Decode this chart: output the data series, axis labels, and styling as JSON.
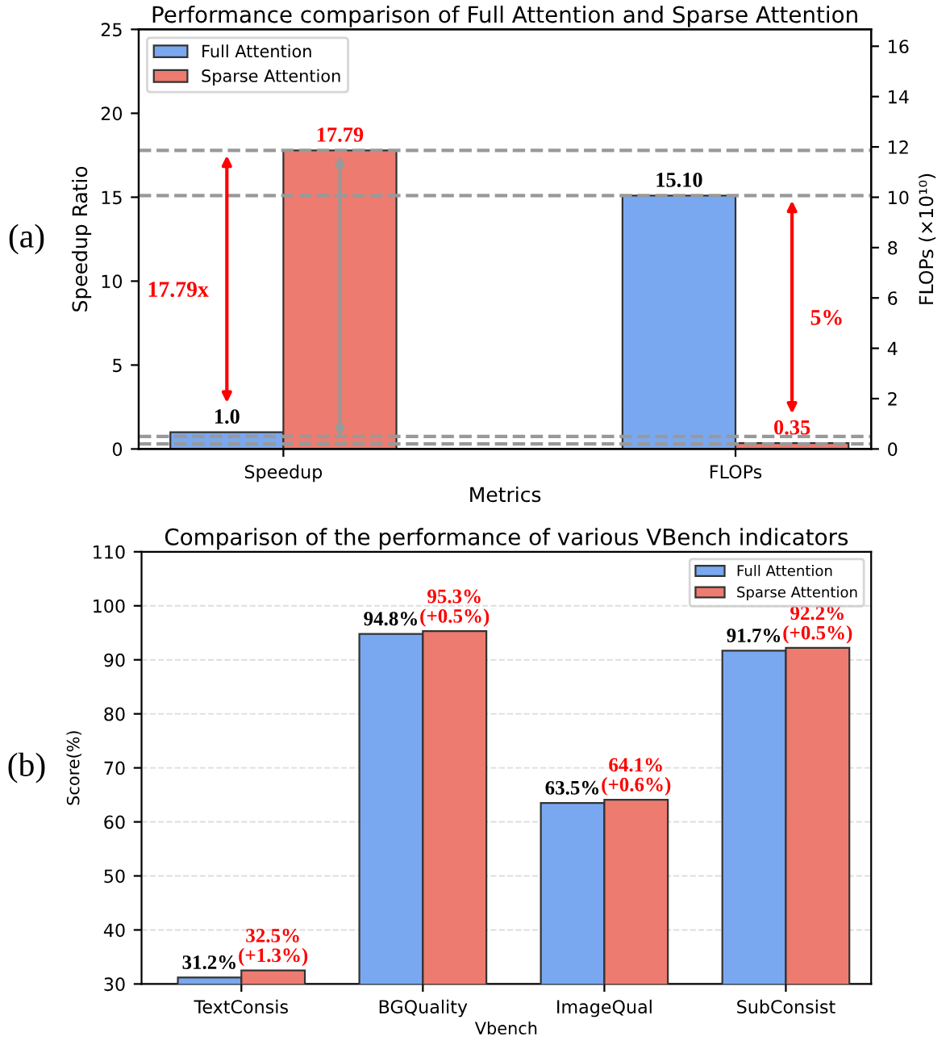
{
  "chart_data": [
    {
      "type": "bar",
      "title": "Performance comparison of Full Attention and Sparse Attention",
      "xlabel": "Metrics",
      "ylabel": "Speedup Ratio",
      "y2label": "FLOPs (×10¹⁰)",
      "categories": [
        "Speedup",
        "FLOPs"
      ],
      "series": [
        {
          "name": "Full Attention",
          "color": "#7aa8f0",
          "values": [
            1.0,
            15.1
          ],
          "value_labels": [
            "1.0",
            "15.10"
          ]
        },
        {
          "name": "Sparse Attention",
          "color": "#ee7b6f",
          "values": [
            17.79,
            0.35
          ],
          "value_labels": [
            "17.79",
            "0.35"
          ]
        }
      ],
      "ylim": [
        0,
        25
      ],
      "yticks": [
        0,
        5,
        10,
        15,
        20,
        25
      ],
      "y2lim": [
        0,
        16.67
      ],
      "y2ticks": [
        0,
        2,
        4,
        6,
        8,
        10,
        12,
        14,
        16
      ],
      "ref_lines": [
        {
          "axis": "y",
          "value": 17.79,
          "color": "#999999",
          "line_style": "dashed"
        },
        {
          "axis": "y",
          "value": 0.75,
          "color": "#999999",
          "line_style": "dashed"
        },
        {
          "axis": "y",
          "value": 15.1,
          "color": "#999999",
          "line_style": "dashed"
        },
        {
          "axis": "y",
          "value": 0.3,
          "color": "#999999",
          "line_style": "dashed"
        }
      ],
      "annotations": [
        "(a)",
        "17.79x",
        "5%"
      ],
      "legend": "top left",
      "grid": false
    },
    {
      "type": "bar",
      "title": "Comparison of the performance of various VBench indicators",
      "xlabel": "Vbench",
      "ylabel": "Score(%)",
      "categories": [
        "TextConsis",
        "BGQuality",
        "ImageQual",
        "SubConsist"
      ],
      "series": [
        {
          "name": "Full Attention",
          "color": "#7aa8f0",
          "values": [
            31.2,
            94.8,
            63.5,
            91.7
          ],
          "value_labels": [
            "31.2%",
            "94.8%",
            "63.5%",
            "91.7%"
          ]
        },
        {
          "name": "Sparse Attention",
          "color": "#ee7b6f",
          "values": [
            32.5,
            95.3,
            64.1,
            92.2
          ],
          "value_labels": [
            "32.5%\n(+1.3%)",
            "95.3%\n(+0.5%)",
            "64.1%\n(+0.6%)",
            "92.2%\n(+0.5%)"
          ]
        }
      ],
      "ylim": [
        30,
        110
      ],
      "yticks": [
        30,
        40,
        50,
        60,
        70,
        80,
        90,
        100,
        110
      ],
      "annotations": [
        "(b)"
      ],
      "legend": "top right",
      "grid": "y"
    }
  ]
}
